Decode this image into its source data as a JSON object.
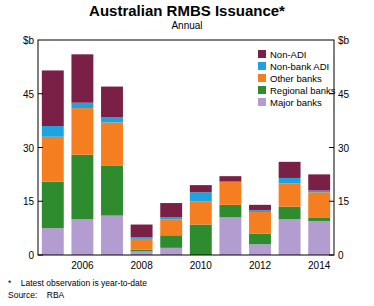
{
  "chart_data": {
    "type": "bar",
    "stacked": true,
    "title": "Australian RMBS Issuance*",
    "subtitle": "Annual",
    "y_label": "$b",
    "footnote": "*    Latest observation is year-to-date",
    "source": "Source:    RBA",
    "categories": [
      null,
      "2006",
      null,
      "2008",
      null,
      "2010",
      null,
      "2012",
      null,
      "2014"
    ],
    "series": [
      {
        "name": "Major banks",
        "color": "#b39ccf",
        "values": [
          7.5,
          10,
          11,
          1,
          2,
          0,
          10.5,
          3,
          10,
          9.5
        ]
      },
      {
        "name": "Regional banks",
        "color": "#2e8b2e",
        "values": [
          13,
          18,
          14,
          0.5,
          3.5,
          8.5,
          3.5,
          3,
          3.5,
          1
        ]
      },
      {
        "name": "Other banks",
        "color": "#f57f20",
        "values": [
          12.5,
          13,
          12,
          3,
          4.5,
          6.5,
          6.5,
          6,
          6.5,
          7
        ]
      },
      {
        "name": "Non-bank ADI",
        "color": "#1fa3e0",
        "values": [
          3,
          1.5,
          1.5,
          0.5,
          0.5,
          2.5,
          0,
          0.5,
          1.5,
          0.5
        ]
      },
      {
        "name": "Non-ADI",
        "color": "#7a1f45",
        "values": [
          15.5,
          13.5,
          8.5,
          3.5,
          4,
          2,
          1.5,
          1.5,
          4.5,
          4.5
        ]
      }
    ],
    "ylim": [
      0,
      60
    ],
    "yticks": [
      0,
      15,
      30,
      45
    ],
    "grid": false,
    "legend": "upper right"
  }
}
